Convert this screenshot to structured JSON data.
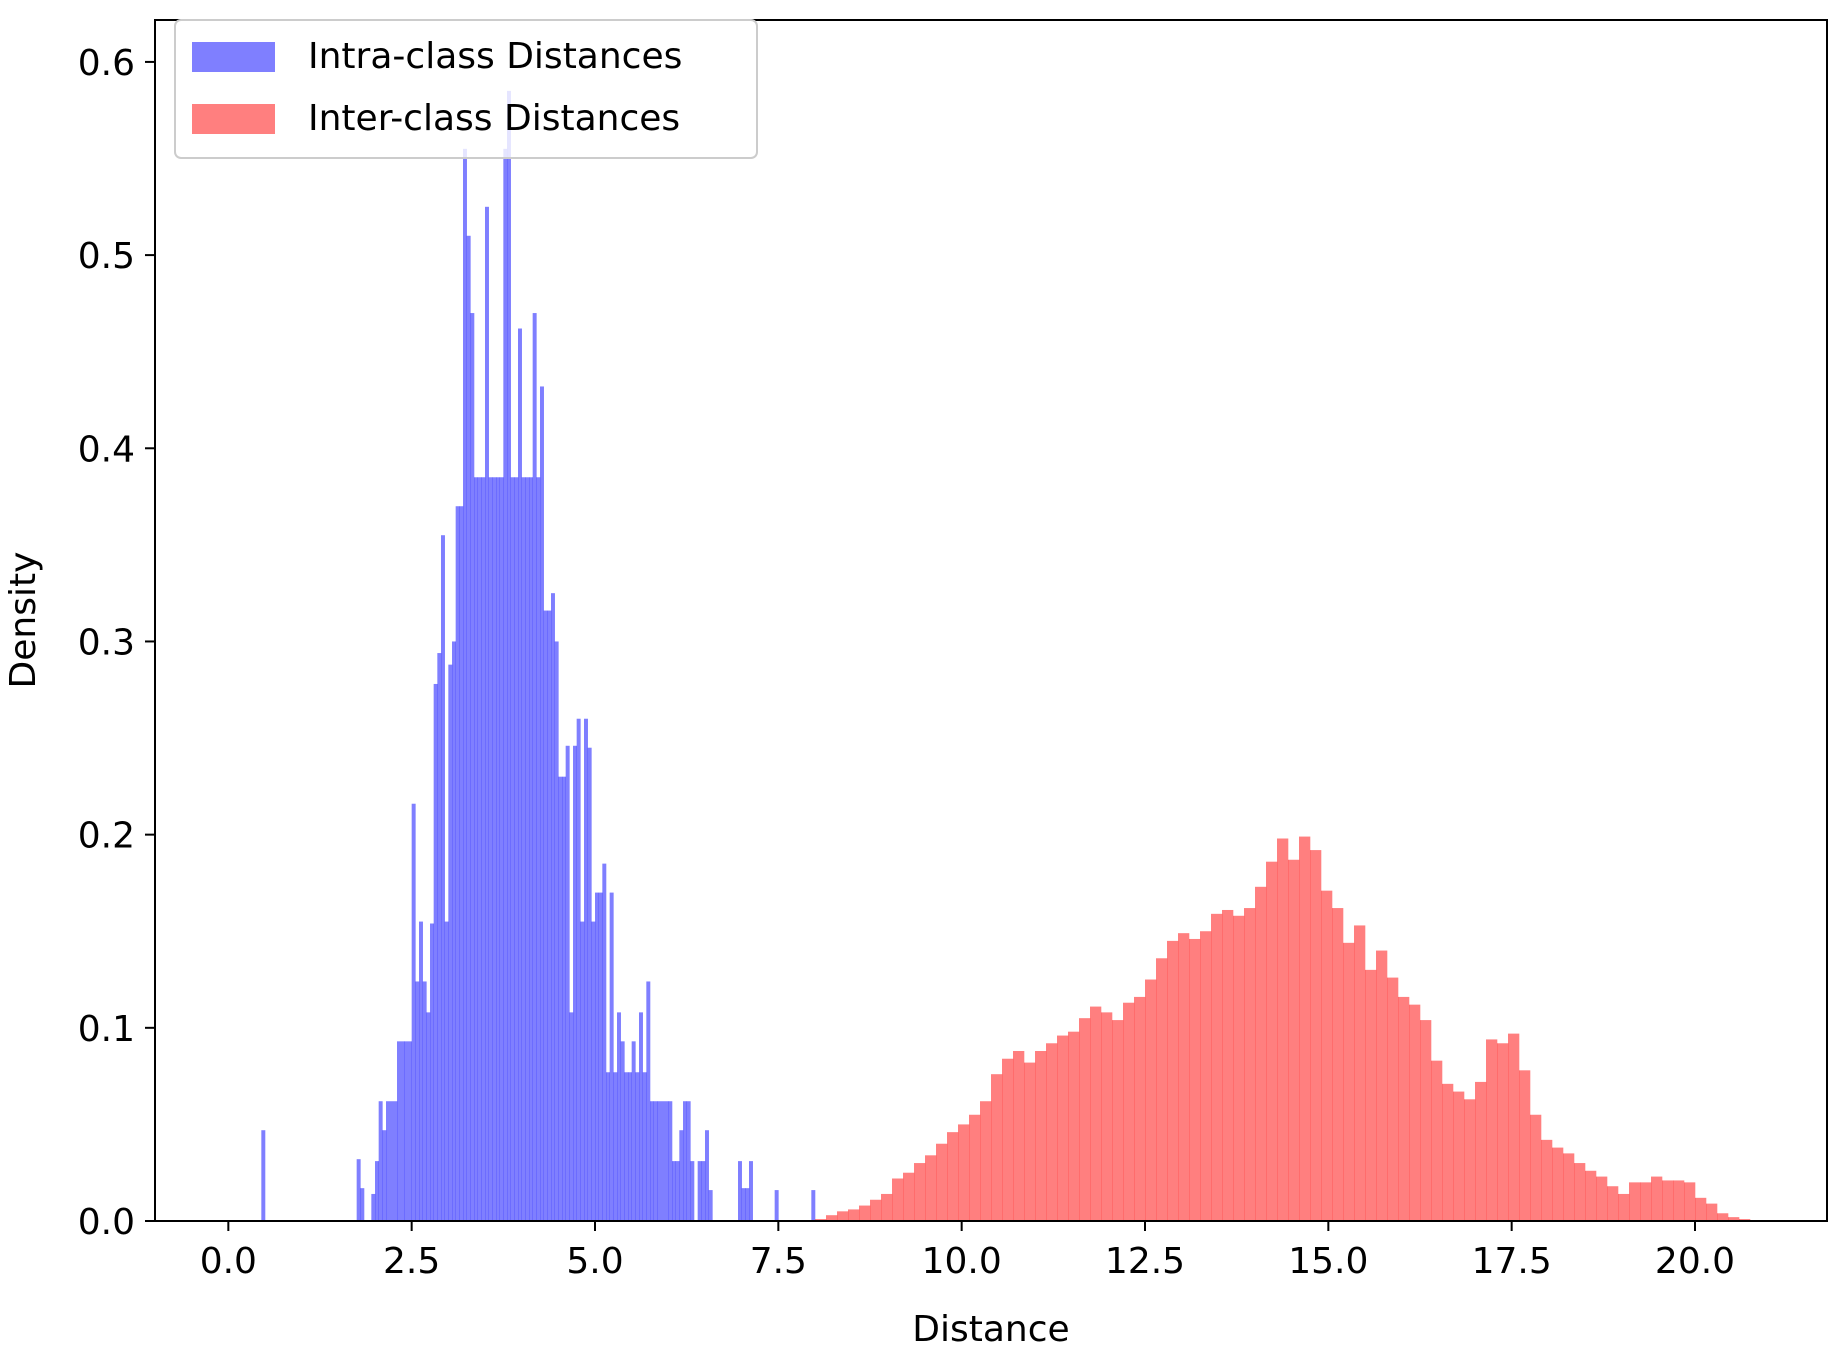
{
  "chart_data": {
    "type": "bar",
    "xlabel": "Distance",
    "ylabel": "Density",
    "xlim": [
      -1.0,
      21.8
    ],
    "ylim": [
      0.0,
      0.6217
    ],
    "x_ticks": [
      "0.0",
      "2.5",
      "5.0",
      "7.5",
      "10.0",
      "12.5",
      "15.0",
      "17.5",
      "20.0"
    ],
    "y_ticks": [
      "0.0",
      "0.1",
      "0.2",
      "0.3",
      "0.4",
      "0.5",
      "0.6"
    ],
    "legend_position": "top-left",
    "series": [
      {
        "name": "Intra-class Distances",
        "color": "#0000ff",
        "opacity": 0.5,
        "bins": [
          [
            0.45,
            0.5,
            0.047
          ],
          [
            1.75,
            1.8,
            0.032
          ],
          [
            1.8,
            1.85,
            0.017
          ],
          [
            1.95,
            2.0,
            0.014
          ],
          [
            2.0,
            2.05,
            0.031
          ],
          [
            2.05,
            2.1,
            0.062
          ],
          [
            2.1,
            2.15,
            0.047
          ],
          [
            2.15,
            2.3,
            0.062
          ],
          [
            2.3,
            2.4,
            0.093
          ],
          [
            2.4,
            2.5,
            0.093
          ],
          [
            2.5,
            2.55,
            0.216
          ],
          [
            2.55,
            2.6,
            0.124
          ],
          [
            2.6,
            2.65,
            0.155
          ],
          [
            2.65,
            2.7,
            0.124
          ],
          [
            2.7,
            2.75,
            0.108
          ],
          [
            2.75,
            2.8,
            0.154
          ],
          [
            2.8,
            2.85,
            0.278
          ],
          [
            2.85,
            2.9,
            0.294
          ],
          [
            2.9,
            2.95,
            0.355
          ],
          [
            2.95,
            3.0,
            0.155
          ],
          [
            3.0,
            3.05,
            0.288
          ],
          [
            3.05,
            3.1,
            0.3
          ],
          [
            3.1,
            3.15,
            0.37
          ],
          [
            3.15,
            3.2,
            0.37
          ],
          [
            3.2,
            3.25,
            0.555
          ],
          [
            3.25,
            3.3,
            0.51
          ],
          [
            3.3,
            3.35,
            0.47
          ],
          [
            3.35,
            3.4,
            0.385
          ],
          [
            3.4,
            3.45,
            0.385
          ],
          [
            3.45,
            3.5,
            0.385
          ],
          [
            3.5,
            3.55,
            0.525
          ],
          [
            3.55,
            3.6,
            0.385
          ],
          [
            3.6,
            3.65,
            0.385
          ],
          [
            3.65,
            3.7,
            0.385
          ],
          [
            3.7,
            3.75,
            0.385
          ],
          [
            3.75,
            3.8,
            0.555
          ],
          [
            3.8,
            3.85,
            0.585
          ],
          [
            3.85,
            3.9,
            0.385
          ],
          [
            3.9,
            3.95,
            0.385
          ],
          [
            3.95,
            4.0,
            0.462
          ],
          [
            4.0,
            4.05,
            0.385
          ],
          [
            4.05,
            4.1,
            0.385
          ],
          [
            4.1,
            4.15,
            0.385
          ],
          [
            4.15,
            4.2,
            0.47
          ],
          [
            4.2,
            4.25,
            0.385
          ],
          [
            4.25,
            4.3,
            0.432
          ],
          [
            4.3,
            4.35,
            0.316
          ],
          [
            4.35,
            4.4,
            0.316
          ],
          [
            4.4,
            4.45,
            0.325
          ],
          [
            4.45,
            4.5,
            0.3
          ],
          [
            4.5,
            4.55,
            0.23
          ],
          [
            4.55,
            4.6,
            0.23
          ],
          [
            4.6,
            4.65,
            0.246
          ],
          [
            4.65,
            4.7,
            0.108
          ],
          [
            4.7,
            4.75,
            0.246
          ],
          [
            4.75,
            4.8,
            0.26
          ],
          [
            4.8,
            4.85,
            0.155
          ],
          [
            4.85,
            4.9,
            0.26
          ],
          [
            4.9,
            4.95,
            0.245
          ],
          [
            4.95,
            5.0,
            0.155
          ],
          [
            5.0,
            5.05,
            0.17
          ],
          [
            5.05,
            5.1,
            0.17
          ],
          [
            5.1,
            5.15,
            0.185
          ],
          [
            5.15,
            5.2,
            0.077
          ],
          [
            5.2,
            5.25,
            0.17
          ],
          [
            5.25,
            5.3,
            0.077
          ],
          [
            5.3,
            5.35,
            0.108
          ],
          [
            5.35,
            5.4,
            0.093
          ],
          [
            5.4,
            5.45,
            0.077
          ],
          [
            5.45,
            5.5,
            0.077
          ],
          [
            5.5,
            5.55,
            0.093
          ],
          [
            5.55,
            5.6,
            0.077
          ],
          [
            5.6,
            5.65,
            0.108
          ],
          [
            5.65,
            5.7,
            0.077
          ],
          [
            5.7,
            5.75,
            0.124
          ],
          [
            5.75,
            5.8,
            0.062
          ],
          [
            5.8,
            5.85,
            0.062
          ],
          [
            5.85,
            6.0,
            0.062
          ],
          [
            6.0,
            6.05,
            0.062
          ],
          [
            6.05,
            6.1,
            0.031
          ],
          [
            6.1,
            6.15,
            0.031
          ],
          [
            6.15,
            6.2,
            0.047
          ],
          [
            6.2,
            6.25,
            0.062
          ],
          [
            6.25,
            6.3,
            0.062
          ],
          [
            6.3,
            6.35,
            0.031
          ],
          [
            6.4,
            6.45,
            0.031
          ],
          [
            6.45,
            6.5,
            0.031
          ],
          [
            6.5,
            6.55,
            0.047
          ],
          [
            6.55,
            6.6,
            0.016
          ],
          [
            6.95,
            7.0,
            0.031
          ],
          [
            7.0,
            7.05,
            0.017
          ],
          [
            7.05,
            7.1,
            0.017
          ],
          [
            7.1,
            7.15,
            0.031
          ],
          [
            7.45,
            7.5,
            0.016
          ],
          [
            7.95,
            8.0,
            0.016
          ]
        ]
      },
      {
        "name": "Inter-class Distances",
        "color": "#ff0000",
        "opacity": 0.5,
        "bins": [
          [
            8.0,
            8.15,
            0.001
          ],
          [
            8.15,
            8.3,
            0.003
          ],
          [
            8.3,
            8.45,
            0.005
          ],
          [
            8.45,
            8.6,
            0.006
          ],
          [
            8.6,
            8.75,
            0.008
          ],
          [
            8.75,
            8.9,
            0.011
          ],
          [
            8.9,
            9.05,
            0.014
          ],
          [
            9.05,
            9.2,
            0.022
          ],
          [
            9.2,
            9.35,
            0.025
          ],
          [
            9.35,
            9.5,
            0.03
          ],
          [
            9.5,
            9.65,
            0.034
          ],
          [
            9.65,
            9.8,
            0.04
          ],
          [
            9.8,
            9.95,
            0.046
          ],
          [
            9.95,
            10.1,
            0.05
          ],
          [
            10.1,
            10.25,
            0.055
          ],
          [
            10.25,
            10.4,
            0.062
          ],
          [
            10.4,
            10.55,
            0.076
          ],
          [
            10.55,
            10.7,
            0.084
          ],
          [
            10.7,
            10.85,
            0.088
          ],
          [
            10.85,
            11.0,
            0.082
          ],
          [
            11.0,
            11.15,
            0.088
          ],
          [
            11.15,
            11.3,
            0.092
          ],
          [
            11.3,
            11.45,
            0.096
          ],
          [
            11.45,
            11.6,
            0.098
          ],
          [
            11.6,
            11.75,
            0.105
          ],
          [
            11.75,
            11.9,
            0.111
          ],
          [
            11.9,
            12.05,
            0.108
          ],
          [
            12.05,
            12.2,
            0.104
          ],
          [
            12.2,
            12.35,
            0.113
          ],
          [
            12.35,
            12.5,
            0.116
          ],
          [
            12.5,
            12.65,
            0.125
          ],
          [
            12.65,
            12.8,
            0.136
          ],
          [
            12.8,
            12.95,
            0.145
          ],
          [
            12.95,
            13.1,
            0.149
          ],
          [
            13.1,
            13.25,
            0.146
          ],
          [
            13.25,
            13.4,
            0.15
          ],
          [
            13.4,
            13.55,
            0.159
          ],
          [
            13.55,
            13.7,
            0.161
          ],
          [
            13.7,
            13.85,
            0.158
          ],
          [
            13.85,
            14.0,
            0.162
          ],
          [
            14.0,
            14.15,
            0.173
          ],
          [
            14.15,
            14.3,
            0.186
          ],
          [
            14.3,
            14.45,
            0.198
          ],
          [
            14.45,
            14.6,
            0.187
          ],
          [
            14.6,
            14.75,
            0.199
          ],
          [
            14.75,
            14.9,
            0.192
          ],
          [
            14.9,
            15.05,
            0.171
          ],
          [
            15.05,
            15.2,
            0.162
          ],
          [
            15.2,
            15.35,
            0.144
          ],
          [
            15.35,
            15.5,
            0.153
          ],
          [
            15.5,
            15.65,
            0.13
          ],
          [
            15.65,
            15.8,
            0.14
          ],
          [
            15.8,
            15.95,
            0.126
          ],
          [
            15.95,
            16.1,
            0.116
          ],
          [
            16.1,
            16.25,
            0.112
          ],
          [
            16.25,
            16.4,
            0.104
          ],
          [
            16.4,
            16.55,
            0.083
          ],
          [
            16.55,
            16.7,
            0.071
          ],
          [
            16.7,
            16.85,
            0.067
          ],
          [
            16.85,
            17.0,
            0.063
          ],
          [
            17.0,
            17.15,
            0.072
          ],
          [
            17.15,
            17.3,
            0.094
          ],
          [
            17.3,
            17.45,
            0.092
          ],
          [
            17.45,
            17.6,
            0.097
          ],
          [
            17.6,
            17.75,
            0.078
          ],
          [
            17.75,
            17.9,
            0.055
          ],
          [
            17.9,
            18.05,
            0.042
          ],
          [
            18.05,
            18.2,
            0.038
          ],
          [
            18.2,
            18.35,
            0.035
          ],
          [
            18.35,
            18.5,
            0.03
          ],
          [
            18.5,
            18.65,
            0.026
          ],
          [
            18.65,
            18.8,
            0.023
          ],
          [
            18.8,
            18.95,
            0.018
          ],
          [
            18.95,
            19.1,
            0.014
          ],
          [
            19.1,
            19.25,
            0.02
          ],
          [
            19.25,
            19.4,
            0.02
          ],
          [
            19.4,
            19.55,
            0.023
          ],
          [
            19.55,
            19.7,
            0.021
          ],
          [
            19.7,
            19.85,
            0.021
          ],
          [
            19.85,
            20.0,
            0.02
          ],
          [
            20.0,
            20.15,
            0.012
          ],
          [
            20.15,
            20.3,
            0.009
          ],
          [
            20.3,
            20.45,
            0.004
          ],
          [
            20.45,
            20.6,
            0.002
          ],
          [
            20.6,
            20.75,
            0.001
          ]
        ]
      }
    ]
  }
}
